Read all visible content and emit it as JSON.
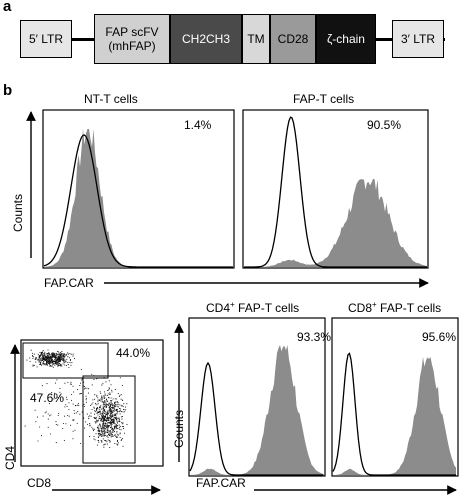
{
  "panel_a": {
    "letter": "a",
    "segments": [
      {
        "label": "5′ LTR",
        "color": "#e6e6e6",
        "text_color": "#000000"
      },
      {
        "label": "FAP scFV\n(mhFAP)",
        "color": "#d0d0d0",
        "text_color": "#000000"
      },
      {
        "label": "CH2CH3",
        "color": "#4a4a4a",
        "text_color": "#ffffff"
      },
      {
        "label": "TM",
        "color": "#d8d8d8",
        "text_color": "#000000"
      },
      {
        "label": "CD28",
        "color": "#9a9a9a",
        "text_color": "#000000"
      },
      {
        "label": "ζ-chain",
        "color": "#111111",
        "text_color": "#ffffff"
      },
      {
        "label": "3′ LTR",
        "color": "#e6e6e6",
        "text_color": "#000000"
      }
    ]
  },
  "panel_b": {
    "letter": "b",
    "histograms_top": [
      {
        "title": "NT-T cells",
        "percent": "1.4%"
      },
      {
        "title": "FAP-T cells",
        "percent": "90.5%"
      }
    ],
    "ylabel_counts": "Counts",
    "xlabel_fapcar": "FAP.CAR",
    "scatter": {
      "xlabel": "CD8",
      "ylabel": "CD4",
      "gate_upper_percent": "44.0%",
      "gate_lower_percent": "47.6%"
    },
    "histograms_bottom": [
      {
        "title_sup": "+",
        "title_prefix": "CD4",
        "title_suffix": " FAP-T cells",
        "percent": "93.3%"
      },
      {
        "title_sup": "+",
        "title_prefix": "CD8",
        "title_suffix": " FAP-T cells",
        "percent": "95.6%"
      }
    ],
    "ylabel_counts_bottom": "Counts",
    "xlabel_fapcar_bottom": "FAP.CAR"
  },
  "colors": {
    "fill": "#8c8c8c",
    "outline": "#000000"
  }
}
